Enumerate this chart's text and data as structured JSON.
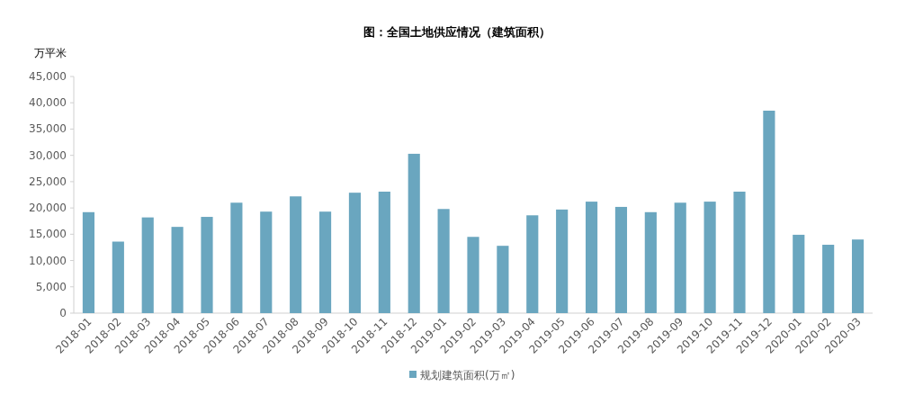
{
  "chart_data": {
    "type": "bar",
    "title": "图：全国土地供应情况（建筑面积）",
    "ylabel": "万平米",
    "categories": [
      "2018-01",
      "2018-02",
      "2018-03",
      "2018-04",
      "2018-05",
      "2018-06",
      "2018-07",
      "2018-08",
      "2018-09",
      "2018-10",
      "2018-11",
      "2018-12",
      "2019-01",
      "2019-02",
      "2019-03",
      "2019-04",
      "2019-05",
      "2019-06",
      "2019-07",
      "2019-08",
      "2019-09",
      "2019-10",
      "2019-11",
      "2019-12",
      "2020-01",
      "2020-02",
      "2020-03"
    ],
    "series": [
      {
        "name": "规划建筑面积(万㎡)",
        "color": "#6aa6bf",
        "values": [
          19200,
          13600,
          18200,
          16400,
          18300,
          21000,
          19300,
          22200,
          19300,
          22900,
          23100,
          30300,
          19800,
          14500,
          12800,
          18600,
          19700,
          21200,
          20200,
          19200,
          21000,
          21200,
          23100,
          38500,
          14900,
          13000,
          14000
        ]
      }
    ],
    "ylim": [
      0,
      45000
    ],
    "yticks": [
      {
        "value": 0,
        "label": "0"
      },
      {
        "value": 5000,
        "label": "5,000"
      },
      {
        "value": 10000,
        "label": "10,000"
      },
      {
        "value": 15000,
        "label": "15,000"
      },
      {
        "value": 20000,
        "label": "20,000"
      },
      {
        "value": 25000,
        "label": "25,000"
      },
      {
        "value": 30000,
        "label": "30,000"
      },
      {
        "value": 35000,
        "label": "35,000"
      },
      {
        "value": 40000,
        "label": "40,000"
      },
      {
        "value": 45000,
        "label": "45,000"
      }
    ],
    "legend": "bottom"
  }
}
